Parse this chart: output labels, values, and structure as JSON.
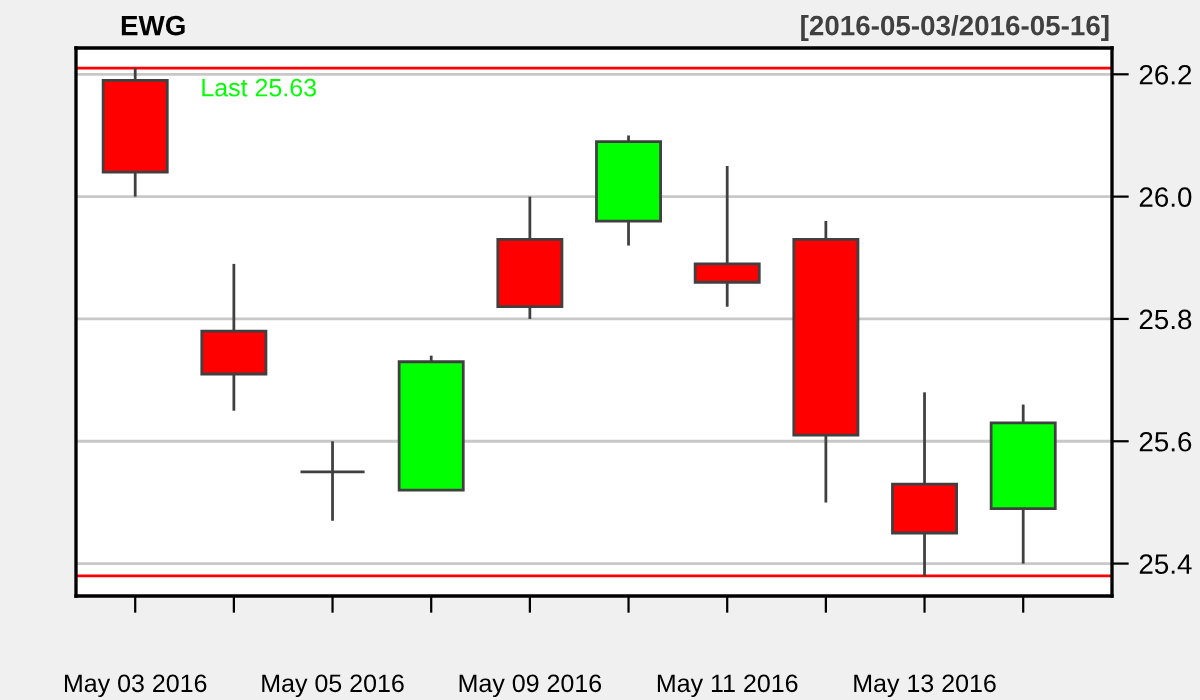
{
  "chart_data": {
    "type": "candlestick",
    "title": "EWG",
    "subtitle": "[2016-05-03/2016-05-16]",
    "categories": [
      "May 03 2016",
      null,
      "May 05 2016",
      null,
      "May 09 2016",
      null,
      "May 11 2016",
      null,
      "May 13 2016",
      null
    ],
    "ohlc": [
      [
        26.19,
        26.21,
        26.0,
        26.04
      ],
      [
        25.78,
        25.89,
        25.65,
        25.71
      ],
      [
        25.55,
        25.6,
        25.47,
        25.55
      ],
      [
        25.52,
        25.74,
        25.52,
        25.73
      ],
      [
        25.93,
        26.0,
        25.8,
        25.82
      ],
      [
        25.96,
        26.1,
        25.92,
        26.09
      ],
      [
        25.89,
        26.05,
        25.82,
        25.86
      ],
      [
        25.93,
        25.96,
        25.5,
        25.61
      ],
      [
        25.53,
        25.68,
        25.38,
        25.45
      ],
      [
        25.49,
        25.66,
        25.4,
        25.63
      ]
    ],
    "colors": [
      "#ff0000",
      "#ff0000",
      "#404040",
      "#00ff00",
      "#ff0000",
      "#00ff00",
      "#ff0000",
      "#ff0000",
      "#ff0000",
      "#00ff00"
    ],
    "ylim": [
      25.347,
      26.243
    ],
    "yticks": [
      25.4,
      25.6,
      25.8,
      {
        "value": 26.0,
        "label": "26.0"
      },
      26.2
    ],
    "ref_lines": [
      {
        "axis": "y",
        "value": 26.21,
        "color": "#ff0000"
      },
      {
        "axis": "y",
        "value": 25.38,
        "color": "#ff0000"
      }
    ],
    "annotations": [
      "Last 25.63"
    ],
    "grid": "y",
    "legend": false
  }
}
